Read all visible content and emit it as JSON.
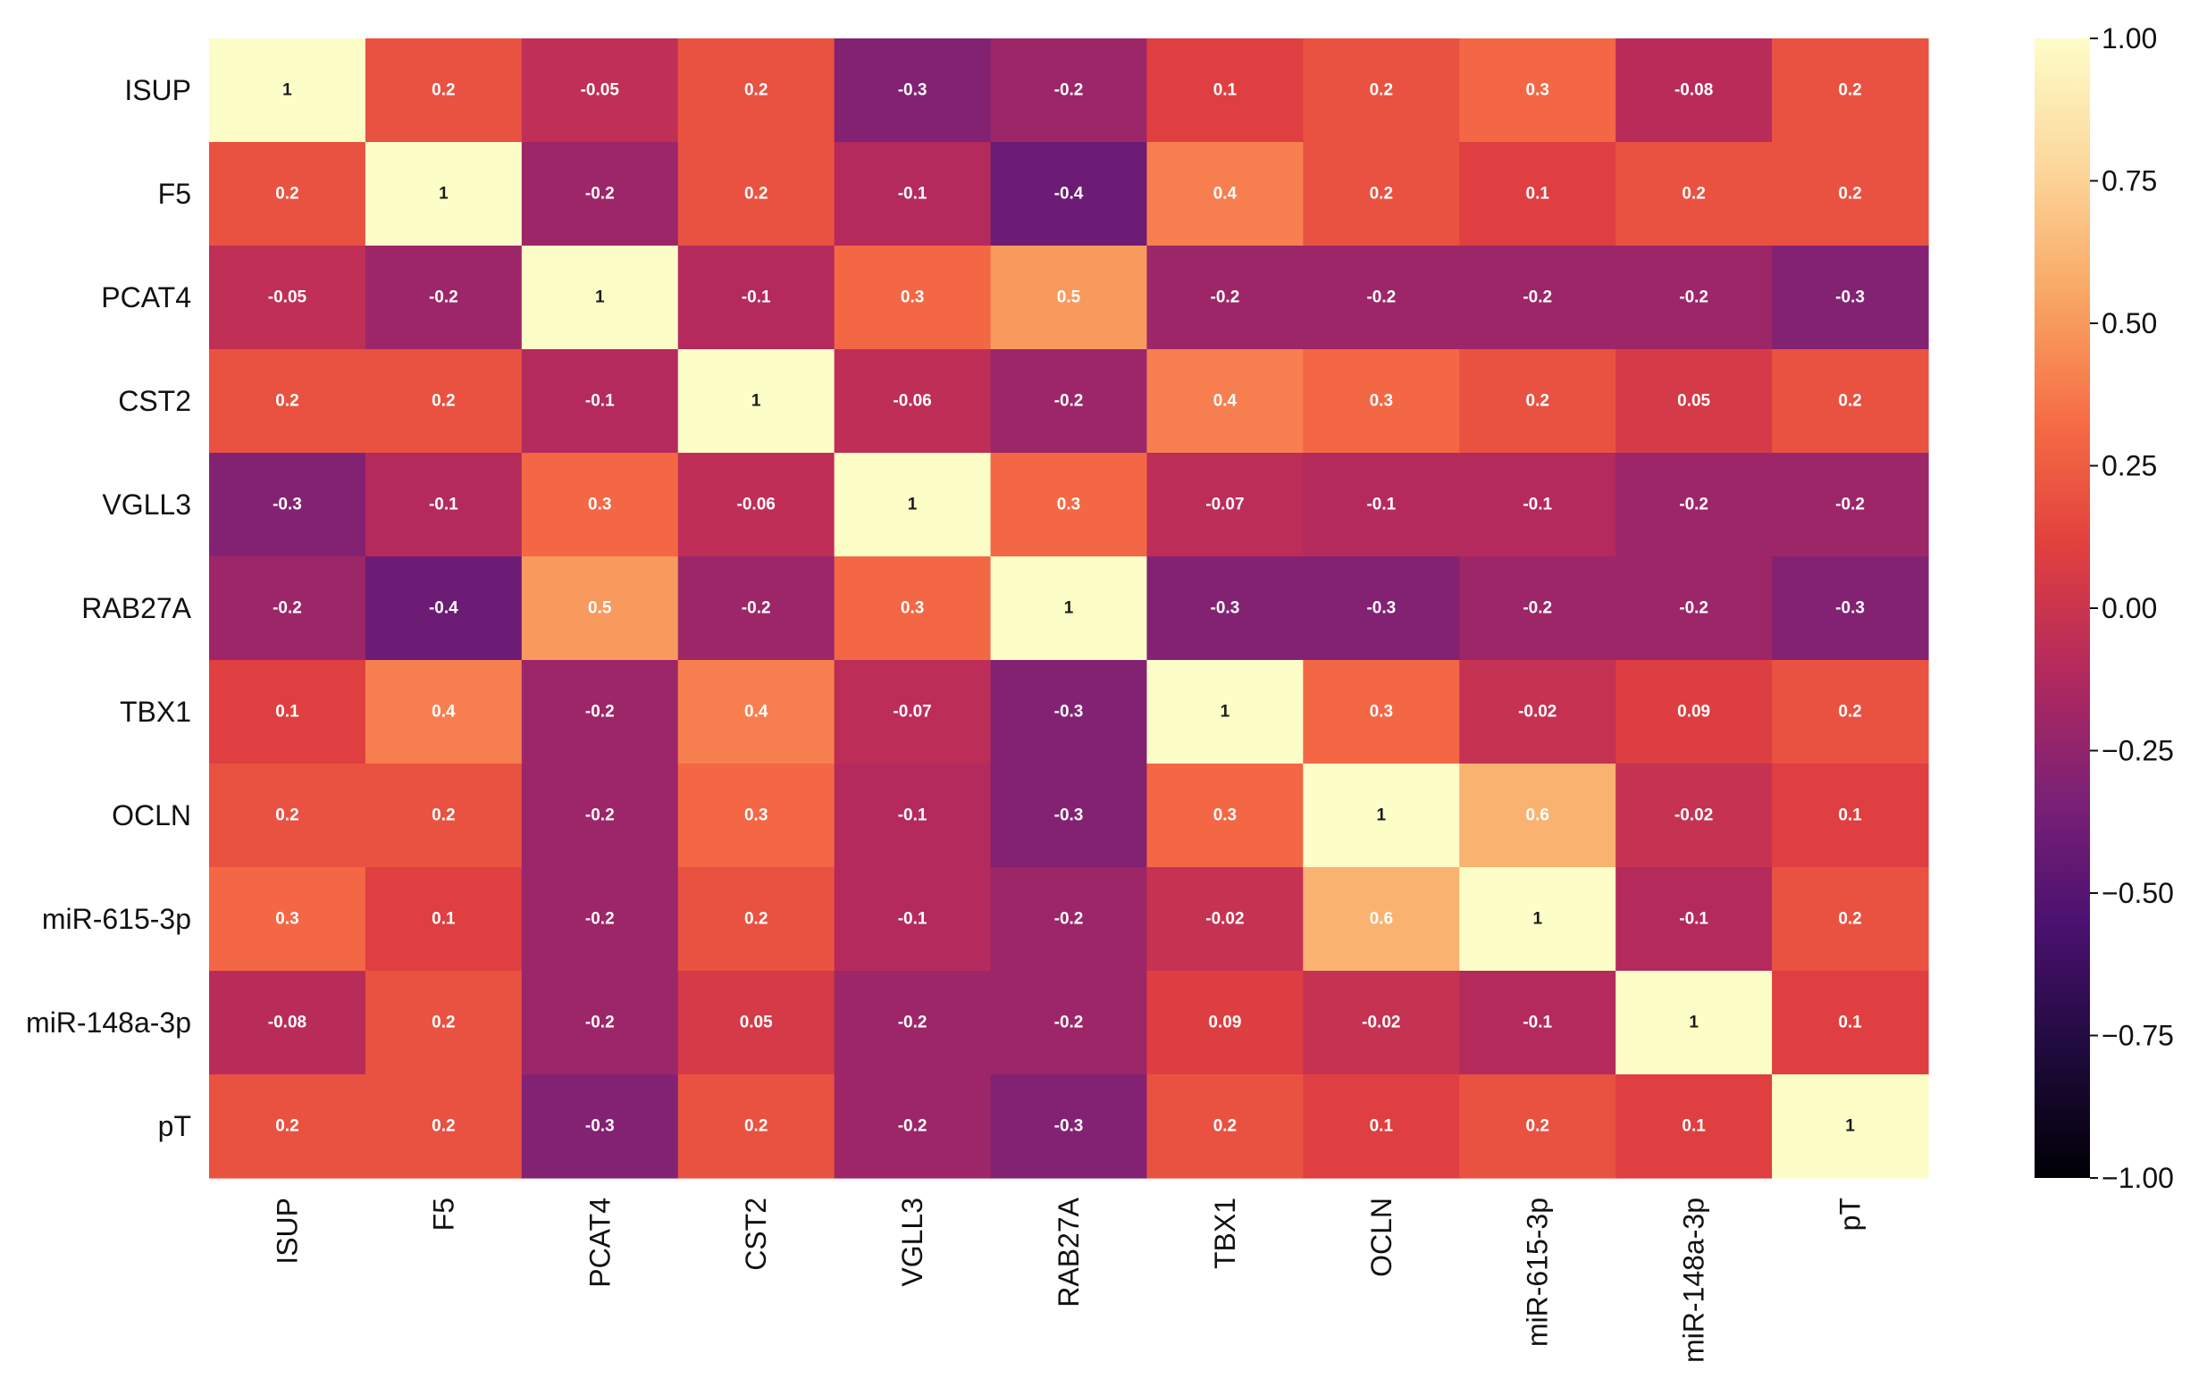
{
  "chart_data": {
    "type": "heatmap",
    "title": "",
    "xlabel": "",
    "ylabel": "",
    "rows": [
      "ISUP",
      "F5",
      "PCAT4",
      "CST2",
      "VGLL3",
      "RAB27A",
      "TBX1",
      "OCLN",
      "miR-615-3p",
      "miR-148a-3p",
      "pT"
    ],
    "columns": [
      "ISUP",
      "F5",
      "PCAT4",
      "CST2",
      "VGLL3",
      "RAB27A",
      "TBX1",
      "OCLN",
      "miR-615-3p",
      "miR-148a-3p",
      "pT"
    ],
    "values": [
      [
        1,
        0.2,
        -0.05,
        0.2,
        -0.3,
        -0.2,
        0.1,
        0.2,
        0.3,
        -0.08,
        0.2
      ],
      [
        0.2,
        1,
        -0.2,
        0.2,
        -0.1,
        -0.4,
        0.4,
        0.2,
        0.1,
        0.2,
        0.2
      ],
      [
        -0.05,
        -0.2,
        1,
        -0.1,
        0.3,
        0.5,
        -0.2,
        -0.2,
        -0.2,
        -0.2,
        -0.3
      ],
      [
        0.2,
        0.2,
        -0.1,
        1,
        -0.06,
        -0.2,
        0.4,
        0.3,
        0.2,
        0.05,
        0.2
      ],
      [
        -0.3,
        -0.1,
        0.3,
        -0.06,
        1,
        0.3,
        -0.07,
        -0.1,
        -0.1,
        -0.2,
        -0.2
      ],
      [
        -0.2,
        -0.4,
        0.5,
        -0.2,
        0.3,
        1,
        -0.3,
        -0.3,
        -0.2,
        -0.2,
        -0.3
      ],
      [
        0.1,
        0.4,
        -0.2,
        0.4,
        -0.07,
        -0.3,
        1,
        0.3,
        -0.02,
        0.09,
        0.2
      ],
      [
        0.2,
        0.2,
        -0.2,
        0.3,
        -0.1,
        -0.3,
        0.3,
        1,
        0.6,
        -0.02,
        0.1
      ],
      [
        0.3,
        0.1,
        -0.2,
        0.2,
        -0.1,
        -0.2,
        -0.02,
        0.6,
        1,
        -0.1,
        0.2
      ],
      [
        -0.08,
        0.2,
        -0.2,
        0.05,
        -0.2,
        -0.2,
        0.09,
        -0.02,
        -0.1,
        1,
        0.1
      ],
      [
        0.2,
        0.2,
        -0.3,
        0.2,
        -0.2,
        -0.3,
        0.2,
        0.1,
        0.2,
        0.1,
        1
      ]
    ],
    "colorbar": {
      "min": -1.0,
      "max": 1.0,
      "ticks": [
        1.0,
        0.75,
        0.5,
        0.25,
        0.0,
        -0.25,
        -0.5,
        -0.75,
        -1.0
      ],
      "tick_labels": [
        "1.00",
        "0.75",
        "0.50",
        "0.25",
        "0.00",
        "−0.25",
        "−0.50",
        "−0.75",
        "−1.00"
      ],
      "colormap": "magma-like",
      "stops": [
        "#000004",
        "#1e0a3c",
        "#4a1170",
        "#7b2176",
        "#b3295e",
        "#e1403e",
        "#f66e45",
        "#f9a865",
        "#fcd89c",
        "#fdfdc8"
      ]
    }
  }
}
